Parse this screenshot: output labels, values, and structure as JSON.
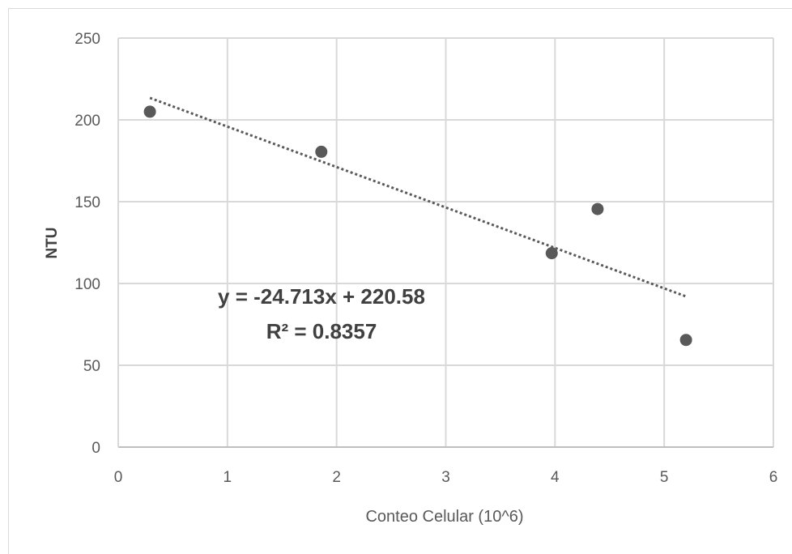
{
  "chart_data": {
    "type": "scatter",
    "title": "",
    "xlabel": "Conteo Celular (10^6)",
    "ylabel": "NTU",
    "xlim": [
      0,
      6
    ],
    "ylim": [
      0,
      250
    ],
    "xticks": [
      "0",
      "1",
      "2",
      "3",
      "4",
      "5",
      "6"
    ],
    "yticks": [
      "0",
      "50",
      "100",
      "150",
      "200",
      "250"
    ],
    "grid": true,
    "legend": "none",
    "marker_color": "#595959",
    "series": [
      {
        "x": [
          0.29,
          1.86,
          3.97,
          4.39,
          5.2
        ],
        "y": [
          205,
          180.5,
          118.5,
          145.5,
          65.5
        ]
      }
    ],
    "trendline": {
      "type": "linear",
      "x_range": [
        0.29,
        5.2
      ],
      "slope": -24.713,
      "intercept": 220.58,
      "equation": "y = -24.713x + 220.58",
      "r_squared": "R² = 0.8357"
    }
  }
}
